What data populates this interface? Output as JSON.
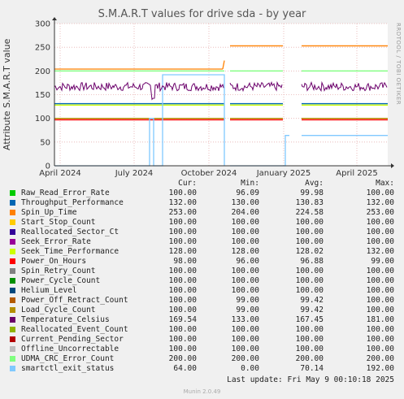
{
  "chart_data": {
    "type": "line",
    "title": "S.M.A.R.T values for drive sda - by year",
    "ylabel": "Attribute S.M.A.R.T value",
    "ylim": [
      0,
      300
    ],
    "yticks": [
      0,
      50,
      100,
      150,
      200,
      250,
      300
    ],
    "x_ticks": [
      "April 2024",
      "July 2024",
      "October 2024",
      "January 2025",
      "April 2025"
    ],
    "x_tick_dates": [
      "2024-04-01",
      "2024-07-01",
      "2024-10-01",
      "2025-01-01",
      "2025-04-01"
    ],
    "x_range": [
      "2024-03-25",
      "2025-05-09"
    ],
    "grid": true,
    "legend_headers": [
      "Cur:",
      "Min:",
      "Avg:",
      "Max:"
    ],
    "series": [
      {
        "name": "Raw_Read_Error_Rate",
        "color": "#00cc00",
        "cur": "100.00",
        "min": "96.09",
        "avg": "99.98",
        "max": "100.00"
      },
      {
        "name": "Throughput_Performance",
        "color": "#0066b3",
        "cur": "132.00",
        "min": "130.00",
        "avg": "130.83",
        "max": "132.00"
      },
      {
        "name": "Spin_Up_Time",
        "color": "#ff8000",
        "cur": "253.00",
        "min": "204.00",
        "avg": "224.58",
        "max": "253.00"
      },
      {
        "name": "Start_Stop_Count",
        "color": "#ffcc00",
        "cur": "100.00",
        "min": "100.00",
        "avg": "100.00",
        "max": "100.00"
      },
      {
        "name": "Reallocated_Sector_Ct",
        "color": "#330099",
        "cur": "100.00",
        "min": "100.00",
        "avg": "100.00",
        "max": "100.00"
      },
      {
        "name": "Seek_Error_Rate",
        "color": "#990099",
        "cur": "100.00",
        "min": "100.00",
        "avg": "100.00",
        "max": "100.00"
      },
      {
        "name": "Seek_Time_Performance",
        "color": "#ccff00",
        "cur": "128.00",
        "min": "128.00",
        "avg": "128.02",
        "max": "132.00"
      },
      {
        "name": "Power_On_Hours",
        "color": "#ff0000",
        "cur": "98.00",
        "min": "96.00",
        "avg": "96.88",
        "max": "99.00"
      },
      {
        "name": "Spin_Retry_Count",
        "color": "#808080",
        "cur": "100.00",
        "min": "100.00",
        "avg": "100.00",
        "max": "100.00"
      },
      {
        "name": "Power_Cycle_Count",
        "color": "#008f00",
        "cur": "100.00",
        "min": "100.00",
        "avg": "100.00",
        "max": "100.00"
      },
      {
        "name": "Helium_Level",
        "color": "#00487d",
        "cur": "100.00",
        "min": "100.00",
        "avg": "100.00",
        "max": "100.00"
      },
      {
        "name": "Power_Off_Retract_Count",
        "color": "#b35a00",
        "cur": "100.00",
        "min": "99.00",
        "avg": "99.42",
        "max": "100.00"
      },
      {
        "name": "Load_Cycle_Count",
        "color": "#b38f00",
        "cur": "100.00",
        "min": "99.00",
        "avg": "99.42",
        "max": "100.00"
      },
      {
        "name": "Temperature_Celsius",
        "color": "#6b006b",
        "cur": "169.54",
        "min": "133.00",
        "avg": "167.45",
        "max": "181.00"
      },
      {
        "name": "Reallocated_Event_Count",
        "color": "#8fb300",
        "cur": "100.00",
        "min": "100.00",
        "avg": "100.00",
        "max": "100.00"
      },
      {
        "name": "Current_Pending_Sector",
        "color": "#b30000",
        "cur": "100.00",
        "min": "100.00",
        "avg": "100.00",
        "max": "100.00"
      },
      {
        "name": "Offline_Uncorrectable",
        "color": "#bebebe",
        "cur": "100.00",
        "min": "100.00",
        "avg": "100.00",
        "max": "100.00"
      },
      {
        "name": "UDMA_CRC_Error_Count",
        "color": "#80ff80",
        "cur": "200.00",
        "min": "200.00",
        "avg": "200.00",
        "max": "200.00"
      },
      {
        "name": "smartctl_exit_status",
        "color": "#80c9ff",
        "cur": "64.00",
        "min": "0.00",
        "avg": "70.14",
        "max": "192.00"
      }
    ]
  },
  "footer": {
    "last_update": "Last update: Fri May  9 00:10:18 2025",
    "version": "Munin 2.0.49"
  },
  "watermark": "RRDTOOL / TOBI OETIKER"
}
